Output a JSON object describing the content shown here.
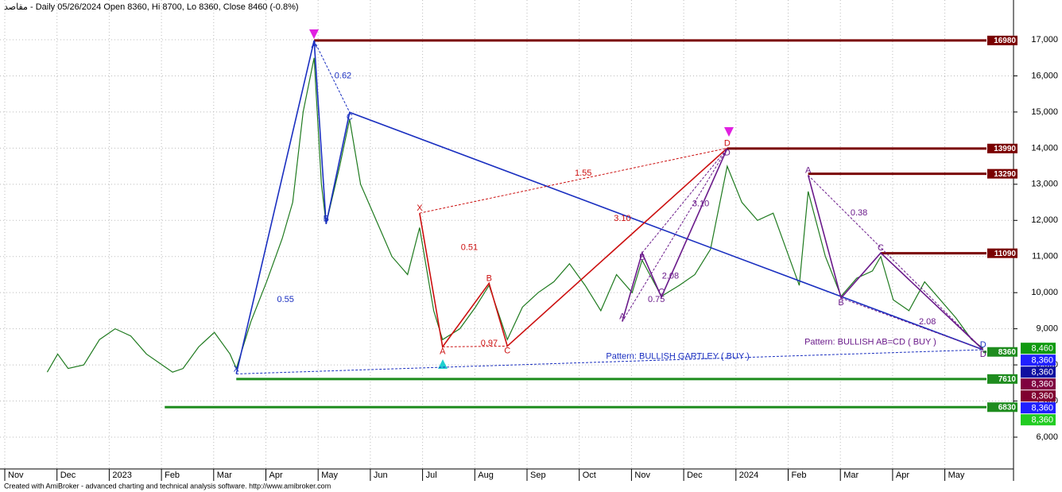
{
  "chart_data": {
    "type": "line",
    "title": "مقاصد - Daily 05/26/2024 Open 8360, Hi 8700, Lo 8360, Close 8460 (-0.8%)",
    "footer": "Created with AmiBroker - advanced charting and technical analysis software. http://www.amibroker.com",
    "categories": [
      "Nov",
      "Dec",
      "2023",
      "Feb",
      "Mar",
      "Apr",
      "May",
      "Jun",
      "Jul",
      "Aug",
      "Sep",
      "Oct",
      "Nov",
      "Dec",
      "2024",
      "Feb",
      "Mar",
      "Apr",
      "May"
    ],
    "ylim": [
      5120,
      18100
    ],
    "yticks": [
      {
        "value": 6000,
        "label": "6,000"
      },
      {
        "value": 7000,
        "label": "7,000"
      },
      {
        "value": 8000,
        "label": "8,000"
      },
      {
        "value": 9000,
        "label": "9,000"
      },
      {
        "value": 10000,
        "label": "10,000"
      },
      {
        "value": 11000,
        "label": "11,000"
      },
      {
        "value": 12000,
        "label": "12,000"
      },
      {
        "value": 13000,
        "label": "13,000"
      },
      {
        "value": 14000,
        "label": "14,000"
      },
      {
        "value": 15000,
        "label": "15,000"
      },
      {
        "value": 16000,
        "label": "16,000"
      },
      {
        "value": 17000,
        "label": "17,000"
      }
    ],
    "grid": true,
    "series": [
      {
        "color": "#1f7a1f",
        "x": [
          0.6,
          0.8,
          1.0,
          1.3,
          1.6,
          1.9,
          2.2,
          2.5,
          2.8,
          3.0,
          3.2,
          3.5,
          3.8,
          4.1,
          4.22,
          4.5,
          4.8,
          5.1,
          5.3,
          5.5,
          5.71,
          5.85,
          5.94,
          6.2,
          6.39,
          6.6,
          6.9,
          7.2,
          7.5,
          7.73,
          8.0,
          8.17,
          8.5,
          8.8,
          9.06,
          9.41,
          9.7,
          10.0,
          10.3,
          10.6,
          10.9,
          11.2,
          11.5,
          11.8,
          11.99,
          12.36,
          12.7,
          13.0,
          13.3,
          13.62,
          13.9,
          14.2,
          14.5,
          14.8,
          15.0,
          15.17,
          15.5,
          15.8,
          16.1,
          16.4,
          16.56,
          16.8,
          17.1,
          17.4,
          17.7,
          18.0,
          18.3,
          18.52
        ],
        "values": [
          7800,
          8300,
          7900,
          8000,
          8700,
          9000,
          8800,
          8300,
          8000,
          7800,
          7900,
          8500,
          8900,
          8300,
          7900,
          9200,
          10300,
          11500,
          12500,
          15000,
          16500,
          13000,
          11900,
          13500,
          14800,
          13000,
          12000,
          11000,
          10500,
          11800,
          9500,
          8700,
          9000,
          9600,
          10200,
          8700,
          9600,
          10000,
          10300,
          10800,
          10200,
          9500,
          10500,
          10000,
          10900,
          9900,
          10200,
          10500,
          11200,
          13500,
          12500,
          12000,
          12200,
          11000,
          10200,
          12800,
          11000,
          9900,
          10400,
          10600,
          11000,
          9800,
          9500,
          10300,
          9800,
          9300,
          8700,
          8460
        ]
      }
    ],
    "levels": [
      {
        "value": 16980,
        "color": "#7a0000",
        "start": 5.71
      },
      {
        "value": 13990,
        "color": "#7a0000",
        "start": 13.62
      },
      {
        "value": 13290,
        "color": "#7a0000",
        "start": 15.17
      },
      {
        "value": 11090,
        "color": "#7a0000",
        "start": 16.56
      },
      {
        "value": 8360,
        "color": "#1e8c1e",
        "start": 18.52
      },
      {
        "value": 7610,
        "color": "#1e8c1e",
        "start": 4.22
      },
      {
        "value": 6830,
        "color": "#1e8c1e",
        "start": 2.85
      }
    ],
    "price_badges": [
      {
        "value": 8460,
        "label": "8,460",
        "color": "#0f9a0f"
      },
      {
        "value": 8360,
        "label": "8,360",
        "color": "#2020ff"
      },
      {
        "value": 8360,
        "label": "8,360",
        "color": "#1010a0"
      },
      {
        "value": 8360,
        "label": "8,360",
        "color": "#800040"
      },
      {
        "value": 8360,
        "label": "8,360",
        "color": "#800030"
      },
      {
        "value": 8360,
        "label": "8,360",
        "color": "#2020ff"
      },
      {
        "value": 8360,
        "label": "8,360",
        "color": "#22cc22"
      }
    ],
    "patterns": [
      {
        "color": "#1a2fc0",
        "labels": [
          "X",
          "A",
          "B",
          "C",
          "D"
        ],
        "points": [
          {
            "x": 4.22,
            "y": 7750
          },
          {
            "x": 5.71,
            "y": 16980
          },
          {
            "x": 5.94,
            "y": 11900
          },
          {
            "x": 6.39,
            "y": 14990
          },
          {
            "x": 18.52,
            "y": 8420
          }
        ]
      },
      {
        "color": "#cc1010",
        "labels": [
          "X",
          "A",
          "B",
          "C",
          "D"
        ],
        "points": [
          {
            "x": 7.73,
            "y": 12200
          },
          {
            "x": 8.17,
            "y": 8500
          },
          {
            "x": 9.06,
            "y": 10260
          },
          {
            "x": 9.41,
            "y": 8520
          },
          {
            "x": 13.62,
            "y": 14000
          }
        ]
      },
      {
        "color": "#6a1a8a",
        "labels": [
          "A",
          "B",
          "C",
          "D"
        ],
        "points": [
          {
            "x": 11.61,
            "y": 9200
          },
          {
            "x": 11.99,
            "y": 11100
          },
          {
            "x": 12.36,
            "y": 9880
          },
          {
            "x": 13.62,
            "y": 13990
          }
        ]
      },
      {
        "color": "#6a1a8a",
        "labels": [
          "A",
          "B",
          "C",
          "D"
        ],
        "points": [
          {
            "x": 15.17,
            "y": 13250
          },
          {
            "x": 15.8,
            "y": 9850
          },
          {
            "x": 16.56,
            "y": 11100
          },
          {
            "x": 18.52,
            "y": 8420
          }
        ]
      }
    ],
    "annotations": [
      {
        "text": "0.62",
        "x": 6.1,
        "y": 16000,
        "color": "#1a2fc0"
      },
      {
        "text": "0.55",
        "x": 5.0,
        "y": 9800,
        "color": "#1a2fc0"
      },
      {
        "text": "1.55",
        "x": 10.7,
        "y": 13300,
        "color": "#cc1010"
      },
      {
        "text": "3.10",
        "x": 11.45,
        "y": 12050,
        "color": "#cc1010"
      },
      {
        "text": "3.10",
        "x": 12.95,
        "y": 12450,
        "color": "#6a1a8a"
      },
      {
        "text": "0.51",
        "x": 8.52,
        "y": 11240,
        "color": "#cc1010"
      },
      {
        "text": "0.97",
        "x": 8.9,
        "y": 8590,
        "color": "#cc1010"
      },
      {
        "text": "2.08",
        "x": 12.37,
        "y": 10450,
        "color": "#6a1a8a"
      },
      {
        "text": "0.75",
        "x": 12.1,
        "y": 9800,
        "color": "#6a1a8a"
      },
      {
        "text": "0.38",
        "x": 15.98,
        "y": 12200,
        "color": "#6a1a8a"
      },
      {
        "text": "2.08",
        "x": 17.29,
        "y": 9190,
        "color": "#6a1a8a"
      },
      {
        "text": "Pattern: BULLISH AB=CD ( BUY )",
        "x": 15.1,
        "y": 8630,
        "color": "#6a1a8a"
      },
      {
        "text": "Pattern: BULLISH GARTLEY ( BUY )",
        "x": 11.3,
        "y": 8230,
        "color": "#1a2fc0"
      }
    ]
  }
}
